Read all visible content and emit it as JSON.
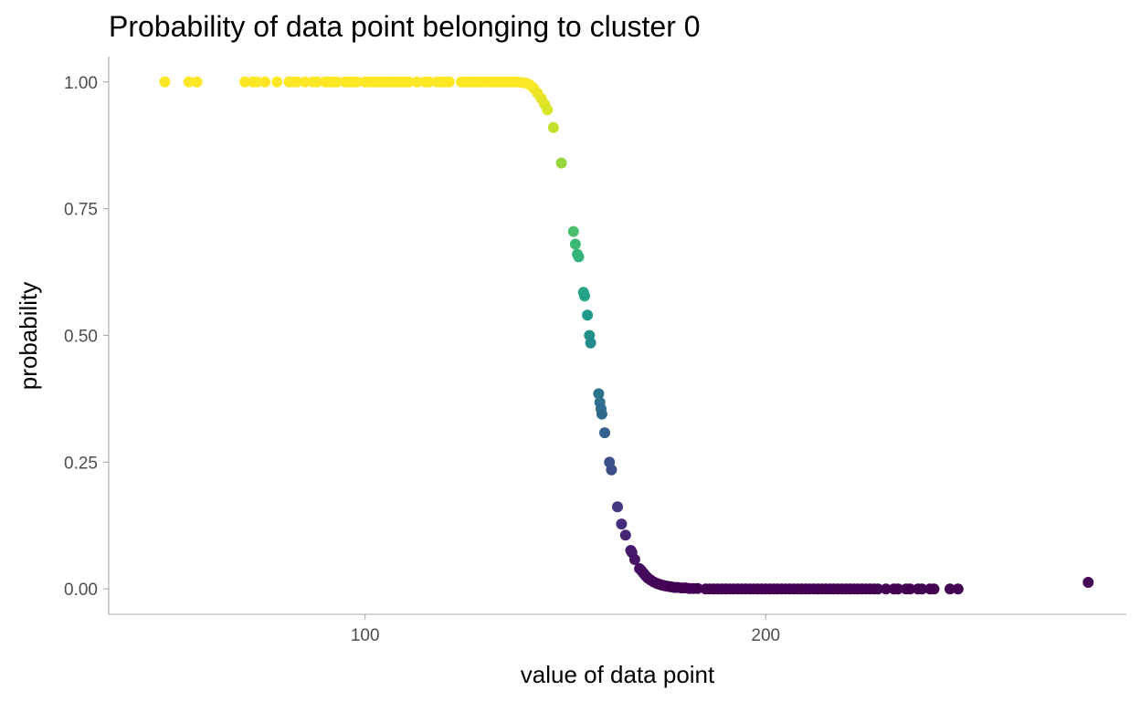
{
  "chart_data": {
    "type": "scatter",
    "title": "Probability of data point belonging to cluster 0",
    "xlabel": "value of data point",
    "ylabel": "probability",
    "xlim": [
      36,
      290
    ],
    "ylim": [
      -0.05,
      1.05
    ],
    "x_ticks": [
      100,
      200
    ],
    "x_tick_labels": [
      "100",
      "200"
    ],
    "y_ticks": [
      0,
      0.25,
      0.5,
      0.75,
      1.0
    ],
    "y_tick_labels": [
      "0.00",
      "0.25",
      "0.50",
      "0.75",
      "1.00"
    ],
    "grid": false,
    "legend": "none",
    "color_scale": "viridis (colored by probability)",
    "colors": {
      "low": "#440154",
      "mid": "#21908c",
      "high": "#fde725",
      "axis": "#a9a9a9",
      "tick_text": "#4d4d4d"
    },
    "points": [
      [
        50,
        1.0
      ],
      [
        56,
        1.0
      ],
      [
        58,
        1.0
      ],
      [
        70,
        1.0
      ],
      [
        72,
        1.0
      ],
      [
        73,
        1.0
      ],
      [
        75,
        1.0
      ],
      [
        78,
        1.0
      ],
      [
        81,
        1.0
      ],
      [
        82,
        1.0
      ],
      [
        83,
        1.0
      ],
      [
        85,
        1.0
      ],
      [
        87,
        1.0
      ],
      [
        88,
        1.0
      ],
      [
        90,
        1.0
      ],
      [
        91,
        1.0
      ],
      [
        92,
        1.0
      ],
      [
        93,
        1.0
      ],
      [
        95,
        1.0
      ],
      [
        96,
        1.0
      ],
      [
        97,
        1.0
      ],
      [
        98,
        1.0
      ],
      [
        100,
        1.0
      ],
      [
        101,
        1.0
      ],
      [
        102,
        1.0
      ],
      [
        103,
        1.0
      ],
      [
        104,
        1.0
      ],
      [
        105,
        1.0
      ],
      [
        106,
        1.0
      ],
      [
        107,
        1.0
      ],
      [
        108,
        1.0
      ],
      [
        109,
        1.0
      ],
      [
        110,
        1.0
      ],
      [
        111,
        1.0
      ],
      [
        113,
        1.0
      ],
      [
        115,
        1.0
      ],
      [
        116,
        1.0
      ],
      [
        118,
        1.0
      ],
      [
        119,
        1.0
      ],
      [
        120,
        1.0
      ],
      [
        121,
        1.0
      ],
      [
        124,
        1.0
      ],
      [
        125,
        1.0
      ],
      [
        126,
        1.0
      ],
      [
        127,
        1.0
      ],
      [
        128,
        1.0
      ],
      [
        129,
        1.0
      ],
      [
        130,
        1.0
      ],
      [
        131,
        1.0
      ],
      [
        132,
        1.0
      ],
      [
        133,
        1.0
      ],
      [
        134,
        1.0
      ],
      [
        135,
        1.0
      ],
      [
        136,
        1.0
      ],
      [
        137,
        1.0
      ],
      [
        138,
        1.0
      ],
      [
        139,
        0.999
      ],
      [
        140,
        0.998
      ],
      [
        141,
        0.995
      ],
      [
        142,
        0.988
      ],
      [
        143,
        0.978
      ],
      [
        144,
        0.967
      ],
      [
        144.8,
        0.956
      ],
      [
        145.5,
        0.945
      ],
      [
        147,
        0.91
      ],
      [
        149,
        0.84
      ],
      [
        152,
        0.705
      ],
      [
        152.5,
        0.68
      ],
      [
        153,
        0.66
      ],
      [
        153.3,
        0.655
      ],
      [
        154.5,
        0.585
      ],
      [
        154.8,
        0.578
      ],
      [
        155.5,
        0.54
      ],
      [
        156,
        0.5
      ],
      [
        156.3,
        0.485
      ],
      [
        158.3,
        0.385
      ],
      [
        158.6,
        0.368
      ],
      [
        158.9,
        0.355
      ],
      [
        159.1,
        0.345
      ],
      [
        159.8,
        0.308
      ],
      [
        161,
        0.25
      ],
      [
        161.5,
        0.235
      ],
      [
        163,
        0.162
      ],
      [
        164,
        0.128
      ],
      [
        165,
        0.106
      ],
      [
        166.3,
        0.076
      ],
      [
        166.6,
        0.072
      ],
      [
        167.3,
        0.058
      ],
      [
        168.5,
        0.04
      ],
      [
        169,
        0.036
      ],
      [
        169.5,
        0.031
      ],
      [
        170,
        0.026
      ],
      [
        170.5,
        0.022
      ],
      [
        171.2,
        0.018
      ],
      [
        172,
        0.014
      ],
      [
        172.8,
        0.011
      ],
      [
        173.5,
        0.009
      ],
      [
        174.3,
        0.007
      ],
      [
        175,
        0.006
      ],
      [
        175.8,
        0.005
      ],
      [
        176.5,
        0.004
      ],
      [
        177.3,
        0.003
      ],
      [
        178,
        0.003
      ],
      [
        179,
        0.002
      ],
      [
        180,
        0.002
      ],
      [
        181,
        0.001
      ],
      [
        182,
        0.001
      ],
      [
        183,
        0.001
      ],
      [
        185,
        0.0
      ],
      [
        186,
        0.0
      ],
      [
        187,
        0.0
      ],
      [
        188,
        0.0
      ],
      [
        189,
        0.0
      ],
      [
        190,
        0.0
      ],
      [
        191,
        0.0
      ],
      [
        192,
        0.0
      ],
      [
        193,
        0.0
      ],
      [
        194,
        0.0
      ],
      [
        195,
        0.0
      ],
      [
        196,
        0.0
      ],
      [
        197,
        0.0
      ],
      [
        198,
        0.0
      ],
      [
        199,
        0.0
      ],
      [
        200,
        0.0
      ],
      [
        201,
        0.0
      ],
      [
        202,
        0.0
      ],
      [
        203,
        0.0
      ],
      [
        204,
        0.0
      ],
      [
        205,
        0.0
      ],
      [
        206,
        0.0
      ],
      [
        207,
        0.0
      ],
      [
        208,
        0.0
      ],
      [
        209,
        0.0
      ],
      [
        210,
        0.0
      ],
      [
        211,
        0.0
      ],
      [
        212,
        0.0
      ],
      [
        213,
        0.0
      ],
      [
        214,
        0.0
      ],
      [
        215,
        0.0
      ],
      [
        216,
        0.0
      ],
      [
        217,
        0.0
      ],
      [
        218,
        0.0
      ],
      [
        219,
        0.0
      ],
      [
        220,
        0.0
      ],
      [
        221,
        0.0
      ],
      [
        222,
        0.0
      ],
      [
        223,
        0.0
      ],
      [
        224,
        0.0
      ],
      [
        225,
        0.0
      ],
      [
        226,
        0.0
      ],
      [
        227,
        0.0
      ],
      [
        228,
        0.0
      ],
      [
        230,
        0.0
      ],
      [
        232,
        0.0
      ],
      [
        233,
        0.0
      ],
      [
        235,
        0.0
      ],
      [
        236,
        0.0
      ],
      [
        238,
        0.0
      ],
      [
        239,
        0.0
      ],
      [
        241,
        0.0
      ],
      [
        242,
        0.0
      ],
      [
        246,
        0.0
      ],
      [
        248,
        0.0
      ],
      [
        280.5,
        0.013
      ]
    ]
  }
}
